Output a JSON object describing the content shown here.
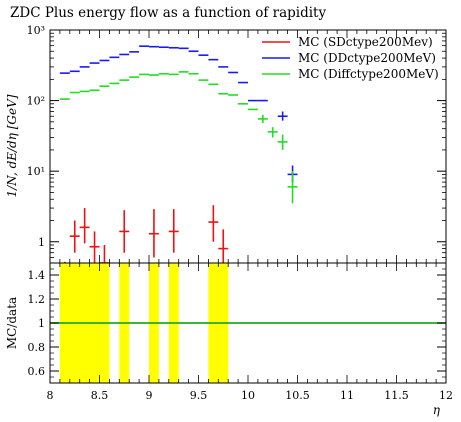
{
  "chart_data": [
    {
      "type": "scatter",
      "title": "ZDC Plus energy flow as a function of rapidity",
      "ylabel": "1/N, dE/dη [GeV]",
      "y_scale": "log",
      "xlim": [
        8,
        12
      ],
      "ylim": [
        0.5,
        1000
      ],
      "y_ticks": [
        {
          "value": 1,
          "label": "1"
        },
        {
          "value": 10,
          "label": "10¹"
        },
        {
          "value": 100,
          "label": "10²"
        },
        {
          "value": 1000,
          "label": "10³"
        }
      ],
      "legend_placement": "top-right",
      "series": [
        {
          "name": "MC (SDctype200Mev)",
          "color": "#ee1111",
          "points": [
            {
              "x": 8.15,
              "y": 0.38,
              "ylo": 0.25,
              "yhi": 0.52
            },
            {
              "x": 8.25,
              "y": 1.2,
              "ylo": 0.7,
              "yhi": 2.0
            },
            {
              "x": 8.35,
              "y": 1.6,
              "ylo": 0.95,
              "yhi": 3.0
            },
            {
              "x": 8.45,
              "y": 0.85,
              "ylo": 0.5,
              "yhi": 1.4
            },
            {
              "x": 8.55,
              "y": 0.5,
              "ylo": 0.3,
              "yhi": 0.9
            },
            {
              "x": 8.75,
              "y": 1.4,
              "ylo": 0.7,
              "yhi": 2.8
            },
            {
              "x": 9.05,
              "y": 1.3,
              "ylo": 0.6,
              "yhi": 2.9
            },
            {
              "x": 9.25,
              "y": 1.4,
              "ylo": 0.7,
              "yhi": 2.9
            },
            {
              "x": 9.65,
              "y": 1.9,
              "ylo": 1.0,
              "yhi": 3.3
            },
            {
              "x": 9.75,
              "y": 0.8,
              "ylo": 0.4,
              "yhi": 1.5
            }
          ]
        },
        {
          "name": "MC (DDctype200MeV)",
          "color": "#1a1aee",
          "points": [
            {
              "x": 8.15,
              "y": 245
            },
            {
              "x": 8.25,
              "y": 260
            },
            {
              "x": 8.35,
              "y": 300
            },
            {
              "x": 8.45,
              "y": 340
            },
            {
              "x": 8.55,
              "y": 370
            },
            {
              "x": 8.65,
              "y": 410
            },
            {
              "x": 8.75,
              "y": 450
            },
            {
              "x": 8.85,
              "y": 490
            },
            {
              "x": 8.95,
              "y": 590
            },
            {
              "x": 9.05,
              "y": 580
            },
            {
              "x": 9.15,
              "y": 570
            },
            {
              "x": 9.25,
              "y": 560
            },
            {
              "x": 9.35,
              "y": 550
            },
            {
              "x": 9.45,
              "y": 500
            },
            {
              "x": 9.55,
              "y": 440
            },
            {
              "x": 9.65,
              "y": 380
            },
            {
              "x": 9.75,
              "y": 300
            },
            {
              "x": 9.85,
              "y": 250
            },
            {
              "x": 9.95,
              "y": 180
            },
            {
              "x": 10.05,
              "y": 100
            },
            {
              "x": 10.15,
              "y": 100
            },
            {
              "x": 10.35,
              "y": 60,
              "ylo": 52,
              "yhi": 70
            },
            {
              "x": 10.45,
              "y": 9,
              "ylo": 7,
              "yhi": 12
            }
          ]
        },
        {
          "name": "MC (Diffctype200MeV)",
          "color": "#22dd22",
          "points": [
            {
              "x": 8.15,
              "y": 105
            },
            {
              "x": 8.25,
              "y": 130
            },
            {
              "x": 8.35,
              "y": 135
            },
            {
              "x": 8.45,
              "y": 140
            },
            {
              "x": 8.55,
              "y": 160
            },
            {
              "x": 8.65,
              "y": 175
            },
            {
              "x": 8.75,
              "y": 195
            },
            {
              "x": 8.85,
              "y": 215
            },
            {
              "x": 8.95,
              "y": 235
            },
            {
              "x": 9.05,
              "y": 230
            },
            {
              "x": 9.15,
              "y": 240
            },
            {
              "x": 9.25,
              "y": 235
            },
            {
              "x": 9.35,
              "y": 255
            },
            {
              "x": 9.45,
              "y": 240
            },
            {
              "x": 9.55,
              "y": 195
            },
            {
              "x": 9.65,
              "y": 170
            },
            {
              "x": 9.75,
              "y": 125
            },
            {
              "x": 9.85,
              "y": 120
            },
            {
              "x": 9.95,
              "y": 90
            },
            {
              "x": 10.05,
              "y": 75
            },
            {
              "x": 10.15,
              "y": 55,
              "ylo": 48,
              "yhi": 63
            },
            {
              "x": 10.25,
              "y": 36,
              "ylo": 30,
              "yhi": 42
            },
            {
              "x": 10.35,
              "y": 26,
              "ylo": 20,
              "yhi": 33
            },
            {
              "x": 10.45,
              "y": 6,
              "ylo": 3.5,
              "yhi": 10
            }
          ]
        }
      ]
    },
    {
      "type": "area",
      "ylabel": "MC/data",
      "xlabel": "η",
      "xlim": [
        8,
        12
      ],
      "ylim": [
        0.5,
        1.5
      ],
      "x_ticks": [
        "8",
        "8.5",
        "9",
        "9.5",
        "10",
        "10.5",
        "11",
        "11.5",
        "12"
      ],
      "y_ticks": [
        "0.6",
        "0.8",
        "1",
        "1.2",
        "1.4"
      ],
      "reference_line": {
        "y": 1,
        "color": "#22aa22"
      },
      "band_color": "#ffff00",
      "bands": [
        {
          "x0": 8.1,
          "x1": 8.6
        },
        {
          "x0": 8.7,
          "x1": 8.8
        },
        {
          "x0": 9.0,
          "x1": 9.1
        },
        {
          "x0": 9.2,
          "x1": 9.3
        },
        {
          "x0": 9.6,
          "x1": 9.8
        }
      ]
    }
  ]
}
